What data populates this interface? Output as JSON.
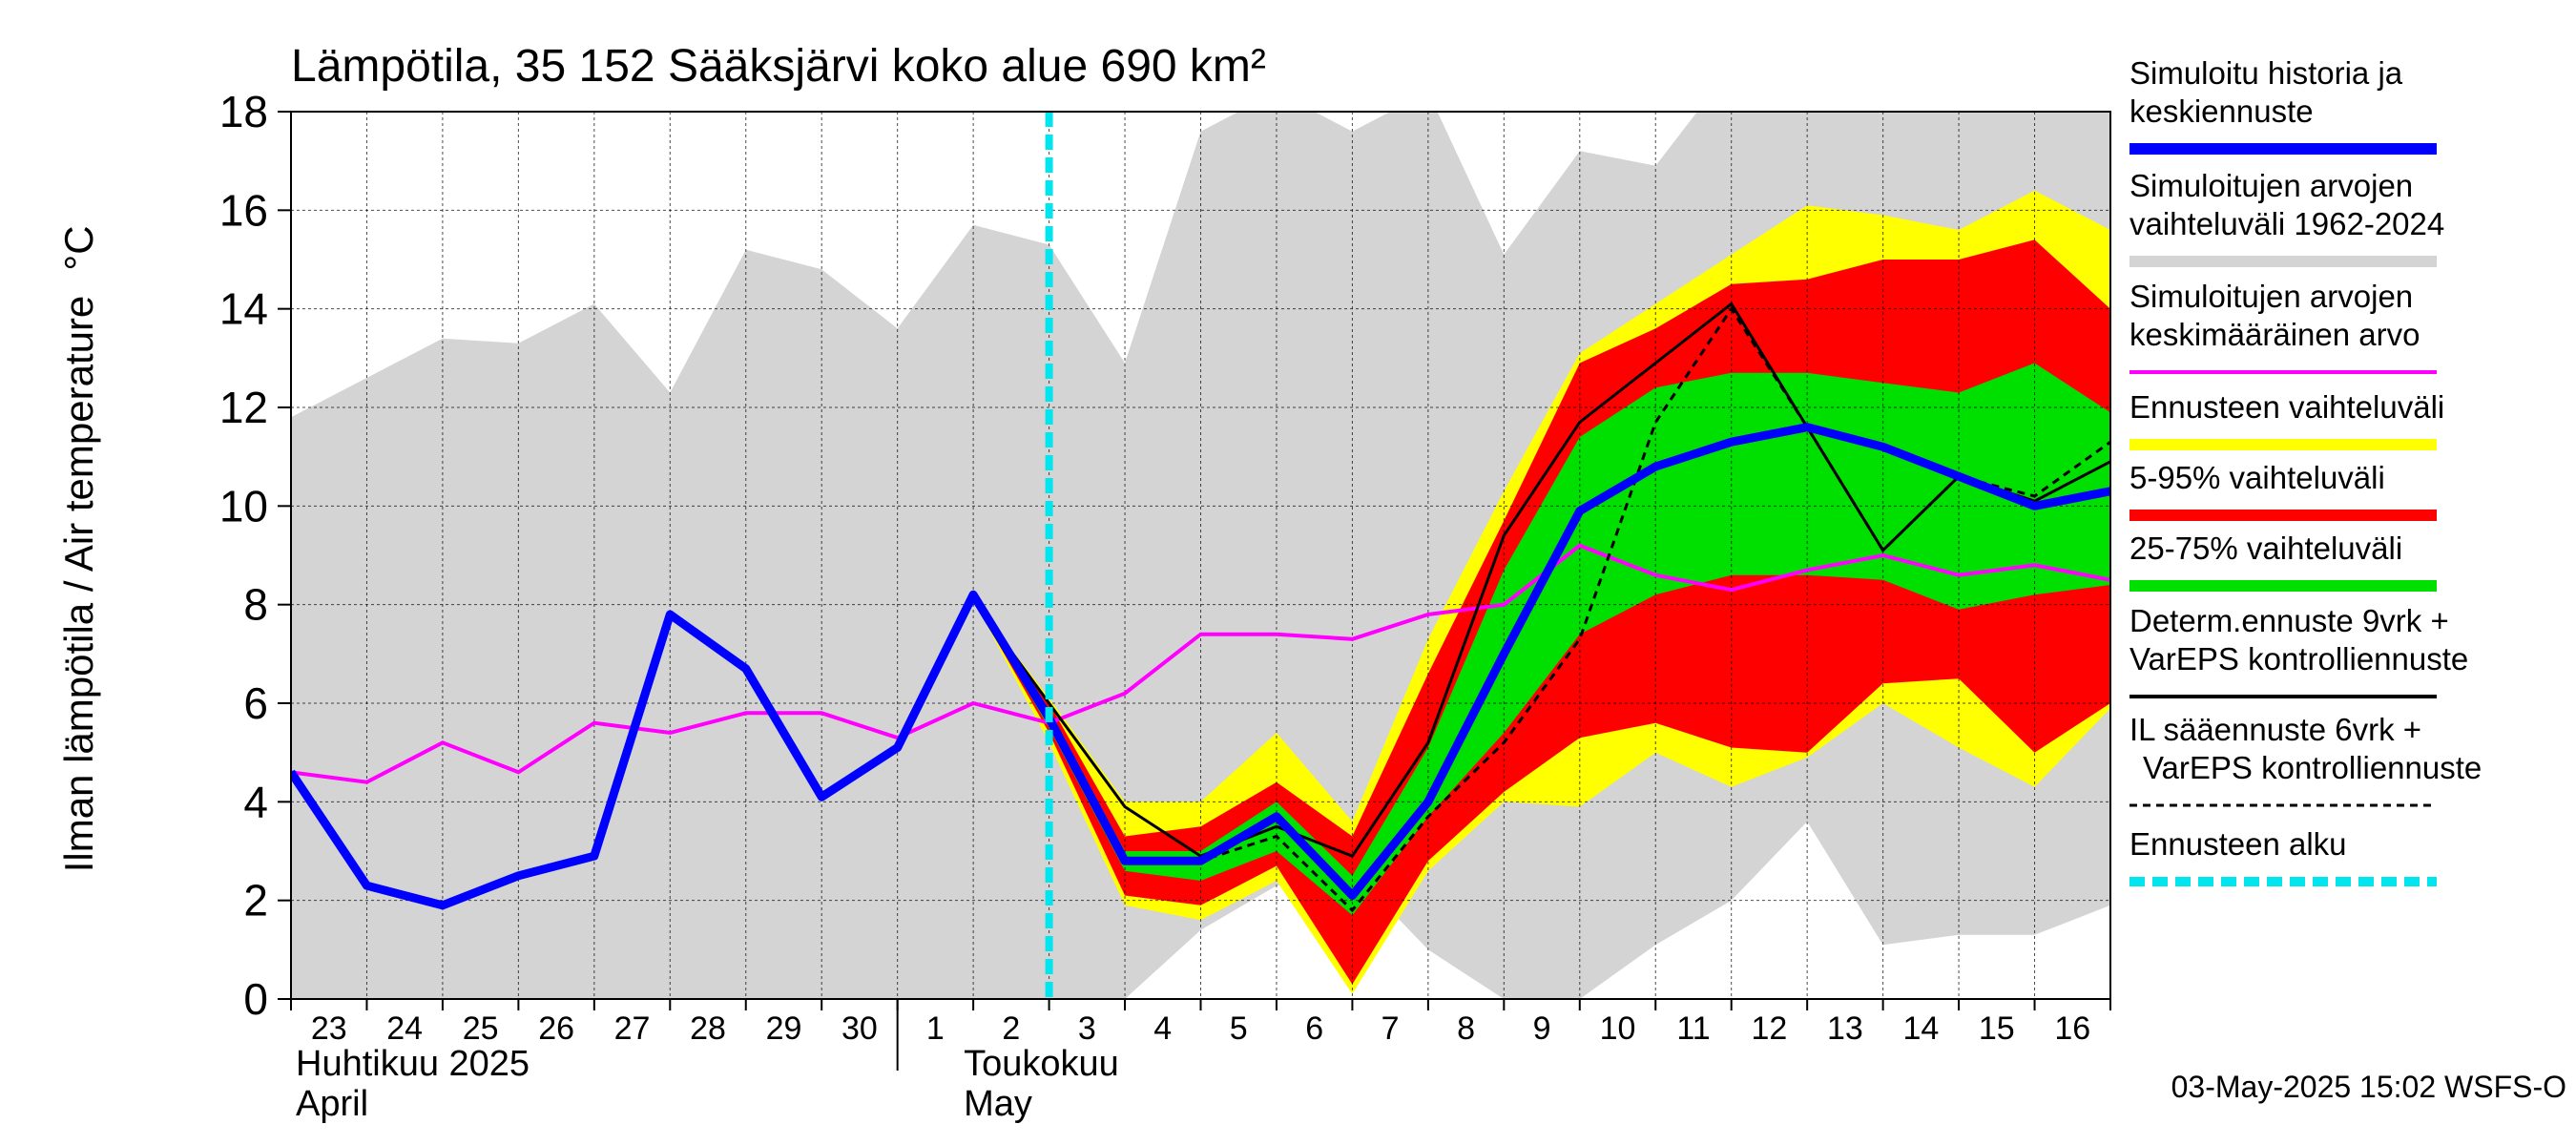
{
  "chart_data": {
    "type": "line",
    "title": "Lämpötila, 35 152 Sääksjärvi koko alue 690 km²",
    "ylabel": "Ilman lämpötila / Air temperature",
    "yunit": "°C",
    "ylim": [
      0,
      18
    ],
    "yticks": [
      0,
      2,
      4,
      6,
      8,
      10,
      12,
      14,
      16,
      18
    ],
    "xlim": [
      "2025-04-23",
      "2025-05-17"
    ],
    "x_tick_labels": [
      "23",
      "24",
      "25",
      "26",
      "27",
      "28",
      "29",
      "30",
      "1",
      "2",
      "3",
      "4",
      "5",
      "6",
      "7",
      "8",
      "9",
      "10",
      "11",
      "12",
      "13",
      "14",
      "15",
      "16"
    ],
    "month_labels": [
      {
        "fi": "Huhtikuu  2025",
        "en": "April"
      },
      {
        "fi": "Toukokuu",
        "en": "May"
      }
    ],
    "grid": true,
    "forecast_start": "2025-05-03",
    "timestamp": "03-May-2025 15:02 WSFS-O",
    "dates": [
      "2025-04-23",
      "2025-04-24",
      "2025-04-25",
      "2025-04-26",
      "2025-04-27",
      "2025-04-28",
      "2025-04-29",
      "2025-04-30",
      "2025-05-01",
      "2025-05-02",
      "2025-05-03",
      "2025-05-04",
      "2025-05-05",
      "2025-05-06",
      "2025-05-07",
      "2025-05-08",
      "2025-05-09",
      "2025-05-10",
      "2025-05-11",
      "2025-05-12",
      "2025-05-13",
      "2025-05-14",
      "2025-05-15",
      "2025-05-16",
      "2025-05-17"
    ],
    "series": [
      {
        "key": "range",
        "color": "#d4d4d4",
        "upper": [
          11.8,
          12.6,
          13.4,
          13.3,
          14.1,
          12.3,
          15.2,
          14.8,
          13.6,
          15.7,
          15.3,
          12.9,
          17.6,
          18.4,
          17.6,
          18.4,
          15.1,
          17.2,
          16.9,
          18.9,
          18.9,
          18.7,
          18.9,
          18.3,
          18.0
        ],
        "lower": [
          0,
          0,
          0,
          0,
          0,
          0,
          0,
          0,
          0,
          0,
          0,
          0,
          1.4,
          2.3,
          2.6,
          1.0,
          0,
          0,
          1.1,
          2.0,
          3.6,
          1.1,
          1.3,
          1.3,
          1.9
        ]
      },
      {
        "key": "forecast_range",
        "color": "#ffff00",
        "x": [
          "2025-05-02",
          "2025-05-03",
          "2025-05-04",
          "2025-05-05",
          "2025-05-06",
          "2025-05-07",
          "2025-05-08",
          "2025-05-09",
          "2025-05-10",
          "2025-05-11",
          "2025-05-12",
          "2025-05-13",
          "2025-05-14",
          "2025-05-15",
          "2025-05-16",
          "2025-05-17"
        ],
        "upper": [
          8.1,
          6.1,
          4.0,
          4.0,
          5.4,
          3.6,
          7.3,
          10.3,
          13.1,
          14.1,
          15.1,
          16.1,
          15.9,
          15.6,
          16.4,
          15.6
        ],
        "lower": [
          8.1,
          5.2,
          1.9,
          1.6,
          2.4,
          0.1,
          2.6,
          4.0,
          3.9,
          5.0,
          4.3,
          4.9,
          6.0,
          5.1,
          4.3,
          5.9
        ]
      },
      {
        "key": "p5_95",
        "color": "#ff0000",
        "x": [
          "2025-05-02",
          "2025-05-03",
          "2025-05-04",
          "2025-05-05",
          "2025-05-06",
          "2025-05-07",
          "2025-05-08",
          "2025-05-09",
          "2025-05-10",
          "2025-05-11",
          "2025-05-12",
          "2025-05-13",
          "2025-05-14",
          "2025-05-15",
          "2025-05-16",
          "2025-05-17"
        ],
        "upper": [
          8.1,
          6.0,
          3.3,
          3.5,
          4.4,
          3.3,
          6.6,
          9.7,
          12.9,
          13.6,
          14.5,
          14.6,
          15.0,
          15.0,
          15.4,
          14.0
        ],
        "lower": [
          8.1,
          5.4,
          2.1,
          1.9,
          2.7,
          0.3,
          2.8,
          4.2,
          5.3,
          5.6,
          5.1,
          5.0,
          6.4,
          6.5,
          5.0,
          6.0
        ]
      },
      {
        "key": "p25_75",
        "color": "#00e000",
        "x": [
          "2025-05-02",
          "2025-05-03",
          "2025-05-04",
          "2025-05-05",
          "2025-05-06",
          "2025-05-07",
          "2025-05-08",
          "2025-05-09",
          "2025-05-10",
          "2025-05-11",
          "2025-05-12",
          "2025-05-13",
          "2025-05-14",
          "2025-05-15",
          "2025-05-16",
          "2025-05-17"
        ],
        "upper": [
          8.1,
          5.8,
          3.0,
          3.0,
          4.0,
          2.5,
          5.1,
          8.7,
          11.4,
          12.4,
          12.7,
          12.7,
          12.5,
          12.3,
          12.9,
          11.9
        ],
        "lower": [
          8.1,
          5.5,
          2.6,
          2.4,
          3.0,
          1.7,
          3.7,
          5.4,
          7.4,
          8.2,
          8.6,
          8.6,
          8.5,
          7.9,
          8.2,
          8.4
        ]
      },
      {
        "key": "mean",
        "name": "Simuloitujen arvojen keskimääräinen arvo",
        "color": "#ff00ff",
        "values": [
          4.6,
          4.4,
          5.2,
          4.6,
          5.6,
          5.4,
          5.8,
          5.8,
          5.3,
          6.0,
          5.6,
          6.2,
          7.4,
          7.4,
          7.3,
          7.8,
          8.0,
          9.2,
          8.6,
          8.3,
          8.7,
          9.0,
          8.6,
          8.8,
          8.5
        ]
      },
      {
        "key": "determ",
        "color": "#000000",
        "x": [
          "2025-05-02",
          "2025-05-03",
          "2025-05-04",
          "2025-05-05",
          "2025-05-06",
          "2025-05-07",
          "2025-05-08",
          "2025-05-09",
          "2025-05-10",
          "2025-05-11",
          "2025-05-12",
          "2025-05-13",
          "2025-05-14",
          "2025-05-15",
          "2025-05-16",
          "2025-05-17"
        ],
        "values": [
          8.1,
          6.0,
          3.9,
          2.9,
          3.5,
          2.9,
          5.2,
          9.4,
          11.7,
          12.9,
          14.1,
          11.6,
          9.1,
          10.6,
          10.1,
          10.9
        ]
      },
      {
        "key": "il",
        "color": "#000000",
        "dashed": true,
        "x": [
          "2025-05-02",
          "2025-05-03",
          "2025-05-04",
          "2025-05-05",
          "2025-05-06",
          "2025-05-07",
          "2025-05-08",
          "2025-05-09",
          "2025-05-10",
          "2025-05-11",
          "2025-05-12",
          "2025-05-13",
          "2025-05-14",
          "2025-05-15",
          "2025-05-16",
          "2025-05-17"
        ],
        "values": [
          8.1,
          5.8,
          2.8,
          2.8,
          3.3,
          1.8,
          3.7,
          5.2,
          7.3,
          11.7,
          14.0,
          11.6,
          9.1,
          10.6,
          10.2,
          11.3
        ]
      },
      {
        "key": "sim",
        "color": "#0000ff",
        "values": [
          4.6,
          2.3,
          1.9,
          2.5,
          2.9,
          7.8,
          6.7,
          4.1,
          5.1,
          8.2,
          5.7,
          2.8,
          2.8,
          3.7,
          2.1,
          4.0,
          7.0,
          9.9,
          10.8,
          11.3,
          11.6,
          11.2,
          10.6,
          10.0,
          10.3
        ]
      }
    ],
    "legend": [
      {
        "label": "Simuloitu historia ja keskiennuste",
        "color": "#0000ff",
        "style": "thick"
      },
      {
        "label": "Simuloitujen arvojen vaihteluväli 1962-2024",
        "color": "#d4d4d4",
        "style": "thick"
      },
      {
        "label": "Simuloitujen arvojen keskimääräinen arvo",
        "color": "#ff00ff",
        "style": "thin"
      },
      {
        "label": "Ennusteen vaihteluväli",
        "color": "#ffff00",
        "style": "thick"
      },
      {
        "label": "5-95% vaihteluväli",
        "color": "#ff0000",
        "style": "thick"
      },
      {
        "label": "25-75% vaihteluväli",
        "color": "#00e000",
        "style": "thick"
      },
      {
        "label": "Determ.ennuste 9vrk +  VarEPS kontrolliennuste",
        "color": "#000000",
        "style": "thin"
      },
      {
        "label": "IL sääennuste 6vrk  +   VarEPS kontrolliennuste",
        "color": "#000000",
        "style": "dashed"
      },
      {
        "label": "Ennusteen alku",
        "color": "#00e5ee",
        "style": "thickdashed"
      }
    ],
    "legend_position": "right"
  }
}
